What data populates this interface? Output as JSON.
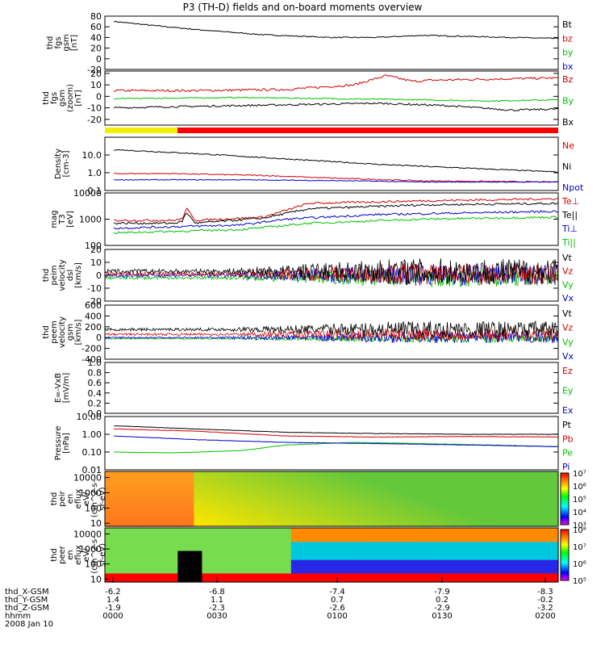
{
  "title": "P3 (TH-D) fields and on-board moments overview",
  "chart_data": {
    "type": "line",
    "x_range": [
      "0000",
      "0200"
    ],
    "date": "2008 Jan 10",
    "panels": [
      {
        "id": "fgs-gsm",
        "ylabel": [
          "thd",
          "fgs",
          "gsm",
          "[nT]"
        ],
        "ylim": [
          -20,
          80
        ],
        "ticks": [
          "80",
          "60",
          "40",
          "20",
          "0",
          "-20"
        ],
        "tick_values": [
          80,
          60,
          40,
          20,
          0,
          -20
        ],
        "legend": [
          {
            "label": "Bt",
            "color": "#000000"
          },
          {
            "label": "bz",
            "color": "#d00000"
          },
          {
            "label": "by",
            "color": "#00c000"
          },
          {
            "label": "bx",
            "color": "#0000d0"
          }
        ],
        "series": [
          {
            "label": "Bt",
            "color": "#000000",
            "x": [
              0.02,
              0.1,
              0.2,
              0.35,
              0.5,
              0.6,
              0.7,
              0.8,
              0.9,
              1.0
            ],
            "y": [
              70,
              63,
              55,
              45,
              40,
              40,
              44,
              42,
              40,
              38
            ],
            "noise": 1
          }
        ]
      },
      {
        "id": "fgs-gsm-zoom",
        "ylabel": [
          "thd",
          "fgs",
          "gsm",
          "(zoom)",
          "[nT]"
        ],
        "ylim": [
          -25,
          22
        ],
        "ticks": [
          "20",
          "10",
          "0",
          "-10",
          "-20"
        ],
        "tick_values": [
          20,
          10,
          0,
          -10,
          -20
        ],
        "legend": [
          {
            "label": "Bz",
            "color": "#d00000"
          },
          {
            "label": "By",
            "color": "#00c000"
          },
          {
            "label": "Bx",
            "color": "#000000"
          }
        ],
        "series": [
          {
            "label": "Bz",
            "color": "#d00000",
            "x": [
              0.02,
              0.2,
              0.4,
              0.55,
              0.62,
              0.68,
              0.72,
              0.85,
              1.0
            ],
            "y": [
              5,
              5,
              6,
              10,
              18,
              13,
              14,
              15,
              16
            ],
            "noise": 1
          },
          {
            "label": "By",
            "color": "#00c000",
            "x": [
              0.02,
              0.3,
              0.5,
              0.7,
              0.85,
              1.0
            ],
            "y": [
              -2,
              -1,
              -2,
              -3,
              -4,
              -3
            ],
            "noise": 0.5
          },
          {
            "label": "Bx",
            "color": "#000000",
            "x": [
              0.02,
              0.15,
              0.3,
              0.45,
              0.6,
              0.75,
              0.9,
              1.0
            ],
            "y": [
              -10,
              -9,
              -8,
              -7,
              -6,
              -8,
              -12,
              -11
            ],
            "noise": 0.8
          }
        ]
      },
      {
        "id": "density",
        "ylabel": [
          "Density",
          "[cm-3]"
        ],
        "ylim": [
          0.1,
          100
        ],
        "log": true,
        "ticks": [
          "10.0",
          "1.0",
          "0.1"
        ],
        "tick_values": [
          10,
          1,
          0.1
        ],
        "legend": [
          {
            "label": "Ne",
            "color": "#d00000"
          },
          {
            "label": "Ni",
            "color": "#000000"
          },
          {
            "label": "Npot",
            "color": "#0000d0"
          }
        ],
        "series": [
          {
            "label": "Ne",
            "color": "#d00000",
            "x": [
              0.02,
              0.15,
              0.35,
              0.5,
              0.7,
              1.0
            ],
            "y": [
              0.9,
              0.9,
              0.7,
              0.5,
              0.35,
              0.3
            ],
            "noise": 0.03
          },
          {
            "label": "Ni",
            "color": "#000000",
            "x": [
              0.02,
              0.2,
              0.4,
              0.6,
              0.8,
              1.0
            ],
            "y": [
              20,
              12,
              6,
              3,
              1.8,
              1.1
            ],
            "noise": 0.03
          },
          {
            "label": "Npot",
            "color": "#0000d0",
            "x": [
              0.02,
              0.3,
              0.55,
              0.7,
              1.0
            ],
            "y": [
              0.4,
              0.4,
              0.35,
              0.3,
              0.3
            ],
            "noise": 0.02
          }
        ]
      },
      {
        "id": "temperature",
        "ylabel": [
          "mag",
          "T3",
          "[eV]"
        ],
        "ylim": [
          100,
          10000
        ],
        "log": true,
        "ticks": [
          "10000",
          "1000",
          "100"
        ],
        "tick_values": [
          10000,
          1000,
          100
        ],
        "legend": [
          {
            "label": "Te⊥",
            "color": "#d00000"
          },
          {
            "label": "Te||",
            "color": "#000000"
          },
          {
            "label": "Ti⊥",
            "color": "#0000d0"
          },
          {
            "label": "Ti||",
            "color": "#00c000"
          }
        ],
        "series": [
          {
            "label": "Te⊥",
            "color": "#d00000",
            "x": [
              0.02,
              0.15,
              0.17,
              0.18,
              0.2,
              0.35,
              0.45,
              0.7,
              1.0
            ],
            "y": [
              900,
              900,
              1000,
              2500,
              900,
              1200,
              4000,
              5000,
              6000
            ],
            "noise": 0.04
          },
          {
            "label": "Te||",
            "color": "#000000",
            "x": [
              0.02,
              0.15,
              0.17,
              0.18,
              0.2,
              0.35,
              0.45,
              0.7,
              1.0
            ],
            "y": [
              700,
              700,
              800,
              1800,
              700,
              1100,
              2500,
              3500,
              4000
            ],
            "noise": 0.04
          },
          {
            "label": "Ti⊥",
            "color": "#0000d0",
            "x": [
              0.02,
              0.3,
              0.4,
              0.6,
              1.0
            ],
            "y": [
              450,
              600,
              1000,
              1500,
              2000
            ],
            "noise": 0.04
          },
          {
            "label": "Ti||",
            "color": "#00c000",
            "x": [
              0.02,
              0.3,
              0.45,
              0.7,
              1.0
            ],
            "y": [
              300,
              400,
              700,
              1000,
              1200
            ],
            "noise": 0.04
          }
        ]
      },
      {
        "id": "velocity-dsl",
        "ylabel": [
          "thd",
          "peim",
          "velocity",
          "dsl",
          "[km/s]"
        ],
        "ylim": [
          -20,
          20
        ],
        "ticks": [
          "20",
          "10",
          "0",
          "-10",
          "-20"
        ],
        "tick_values": [
          20,
          10,
          0,
          -10,
          -20
        ],
        "legend": [
          {
            "label": "Vt",
            "color": "#000000"
          },
          {
            "label": "Vz",
            "color": "#d00000"
          },
          {
            "label": "Vy",
            "color": "#00c000"
          },
          {
            "label": "Vx",
            "color": "#0000d0"
          }
        ],
        "series": []
      },
      {
        "id": "velocity-gsm",
        "ylabel": [
          "thd",
          "peem",
          "velocity",
          "gsm",
          "[km/s]"
        ],
        "ylim": [
          -400,
          600
        ],
        "ticks": [
          "600",
          "400",
          "200",
          "0",
          "-200",
          "-400"
        ],
        "tick_values": [
          600,
          400,
          200,
          0,
          -200,
          -400
        ],
        "legend": [
          {
            "label": "Vt",
            "color": "#000000"
          },
          {
            "label": "Vz",
            "color": "#d00000"
          },
          {
            "label": "Vy",
            "color": "#00c000"
          },
          {
            "label": "Vx",
            "color": "#0000d0"
          }
        ],
        "series": []
      },
      {
        "id": "efield",
        "ylabel": [
          "E=-VxB",
          "[mV/m]"
        ],
        "ylim": [
          0,
          1
        ],
        "ticks": [
          "1.0",
          "0.8",
          "0.6",
          "0.4",
          "0.2",
          "0.0"
        ],
        "tick_values": [
          1.0,
          0.8,
          0.6,
          0.4,
          0.2,
          0.0
        ],
        "legend": [
          {
            "label": "Ez",
            "color": "#d00000"
          },
          {
            "label": "Ey",
            "color": "#00c000"
          },
          {
            "label": "Ex",
            "color": "#0000d0"
          }
        ],
        "series": []
      },
      {
        "id": "pressure",
        "ylabel": [
          "Pressure",
          "[nPa]"
        ],
        "ylim": [
          0.01,
          10
        ],
        "log": true,
        "ticks": [
          "10.00",
          "1.00",
          "0.10",
          "0.01"
        ],
        "tick_values": [
          10,
          1,
          0.1,
          0.01
        ],
        "legend": [
          {
            "label": "Pt",
            "color": "#000000"
          },
          {
            "label": "Pb",
            "color": "#d00000"
          },
          {
            "label": "Pe",
            "color": "#00c000"
          },
          {
            "label": "Pi",
            "color": "#0000d0"
          }
        ],
        "series": [
          {
            "label": "Pt",
            "color": "#000000",
            "x": [
              0.02,
              0.2,
              0.4,
              0.6,
              0.8,
              1.0
            ],
            "y": [
              3.0,
              2.0,
              1.3,
              1.1,
              1.0,
              1.0
            ],
            "noise": 0.01
          },
          {
            "label": "Pb",
            "color": "#d00000",
            "x": [
              0.02,
              0.2,
              0.4,
              0.6,
              0.8,
              1.0
            ],
            "y": [
              2.0,
              1.5,
              0.8,
              0.7,
              0.75,
              0.7
            ],
            "noise": 0.01
          },
          {
            "label": "Pe",
            "color": "#00c000",
            "x": [
              0.02,
              0.15,
              0.3,
              0.4,
              0.55,
              0.7,
              0.85,
              1.0
            ],
            "y": [
              0.1,
              0.09,
              0.12,
              0.25,
              0.35,
              0.3,
              0.25,
              0.2
            ],
            "noise": 0.01
          },
          {
            "label": "Pi",
            "color": "#0000d0",
            "x": [
              0.02,
              0.2,
              0.4,
              0.6,
              0.8,
              1.0
            ],
            "y": [
              0.8,
              0.5,
              0.35,
              0.3,
              0.25,
              0.2
            ],
            "noise": 0.01
          }
        ]
      }
    ],
    "spectrograms": [
      {
        "id": "peir-eflux",
        "ylabel": [
          "thd",
          "peir",
          "en",
          "eflux",
          "eV/",
          "(cm^2-s-",
          "sr-eV)"
        ],
        "ticks": [
          "10000",
          "1000",
          "100",
          "10"
        ],
        "tick_values": [
          10000,
          1000,
          100,
          10
        ],
        "colorbar_ticks": [
          "10⁷",
          "10⁶",
          "10⁵",
          "10⁴",
          "10³"
        ],
        "colorbar_values": [
          7,
          6,
          5,
          4,
          3
        ]
      },
      {
        "id": "peer-eflux",
        "ylabel": [
          "thd",
          "peer",
          "en",
          "eflux",
          "eV/",
          "(cm^2-s-",
          "sr-eV)"
        ],
        "ticks": [
          "10000",
          "1000",
          "100",
          "10"
        ],
        "tick_values": [
          10000,
          1000,
          100,
          10
        ],
        "colorbar_ticks": [
          "10⁸",
          "10⁷",
          "10⁶",
          "10⁵"
        ],
        "colorbar_values": [
          8,
          7,
          6,
          5
        ]
      }
    ],
    "xaxis_rows": [
      {
        "label": "thd_X-GSM",
        "values": [
          "-6.2",
          "-6.8",
          "-7.4",
          "-7.9",
          "-8.3"
        ]
      },
      {
        "label": "thd_Y-GSM",
        "values": [
          "1.4",
          "1.1",
          "0.7",
          "0.2",
          "-0.2"
        ]
      },
      {
        "label": "thd_Z-GSM",
        "values": [
          "-1.9",
          "-2.3",
          "-2.6",
          "-2.9",
          "-3.2"
        ]
      },
      {
        "label": "hhmm",
        "values": [
          "0000",
          "0030",
          "0100",
          "0130",
          "0200"
        ]
      }
    ]
  },
  "colors": {
    "red": "#d00000",
    "green": "#00c000",
    "blue": "#0000d0",
    "black": "#000000",
    "yellow": "#f0f000",
    "status_red": "#ff0000"
  }
}
